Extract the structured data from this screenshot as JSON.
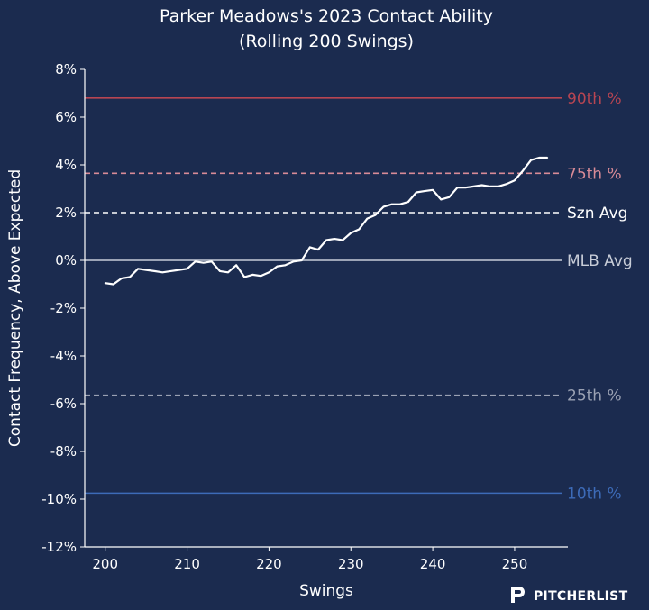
{
  "chart_data": {
    "type": "line",
    "title": "Parker Meadows's 2023 Contact Ability",
    "subtitle": "(Rolling 200 Swings)",
    "xlabel": "Swings",
    "ylabel": "Contact Frequency, Above Expected",
    "xlim": [
      197.5,
      256.5
    ],
    "ylim": [
      -12,
      8
    ],
    "xticks": [
      200,
      210,
      220,
      230,
      240,
      250
    ],
    "yticks": [
      8,
      6,
      4,
      2,
      0,
      -2,
      -4,
      -6,
      -8,
      -10,
      -12
    ],
    "ytick_labels": [
      "8%",
      "6%",
      "4%",
      "2%",
      "0%",
      "-2%",
      "-4%",
      "-6%",
      "-8%",
      "-10%",
      "-12%"
    ],
    "reference_lines": [
      {
        "label": "90th %",
        "value": 6.8,
        "color": "#b84552",
        "style": "solid"
      },
      {
        "label": "75th %",
        "value": 3.65,
        "color": "#d98b97",
        "style": "dashed"
      },
      {
        "label": "Szn Avg",
        "value": 2.0,
        "color": "#ffffff",
        "style": "dashed"
      },
      {
        "label": "MLB Avg",
        "value": 0.0,
        "color": "#c8cdd8",
        "style": "solid"
      },
      {
        "label": "25th %",
        "value": -5.65,
        "color": "#9aa1b3",
        "style": "dashed"
      },
      {
        "label": "10th %",
        "value": -9.75,
        "color": "#3d6bb8",
        "style": "solid"
      }
    ],
    "series": [
      {
        "name": "Rolling contact above expected",
        "color": "#ffffff",
        "x": [
          200,
          201,
          202,
          203,
          204,
          205,
          206,
          207,
          208,
          209,
          210,
          211,
          212,
          213,
          214,
          215,
          216,
          217,
          218,
          219,
          220,
          221,
          222,
          223,
          224,
          225,
          226,
          227,
          228,
          229,
          230,
          231,
          232,
          233,
          234,
          235,
          236,
          237,
          238,
          239,
          240,
          241,
          242,
          243,
          244,
          245,
          246,
          247,
          248,
          249,
          250,
          251,
          252,
          253,
          254
        ],
        "y": [
          -0.95,
          -1.0,
          -0.75,
          -0.7,
          -0.35,
          -0.4,
          -0.45,
          -0.5,
          -0.45,
          -0.4,
          -0.35,
          -0.05,
          -0.1,
          -0.05,
          -0.45,
          -0.5,
          -0.2,
          -0.7,
          -0.6,
          -0.65,
          -0.5,
          -0.25,
          -0.2,
          -0.05,
          0.0,
          0.55,
          0.45,
          0.85,
          0.9,
          0.85,
          1.15,
          1.3,
          1.75,
          1.9,
          2.25,
          2.35,
          2.35,
          2.45,
          2.85,
          2.9,
          2.95,
          2.55,
          2.65,
          3.05,
          3.05,
          3.1,
          3.15,
          3.1,
          3.1,
          3.2,
          3.35,
          3.75,
          4.2,
          4.3,
          4.3
        ]
      }
    ]
  },
  "branding": {
    "logo_text": "PITCHERLIST"
  }
}
